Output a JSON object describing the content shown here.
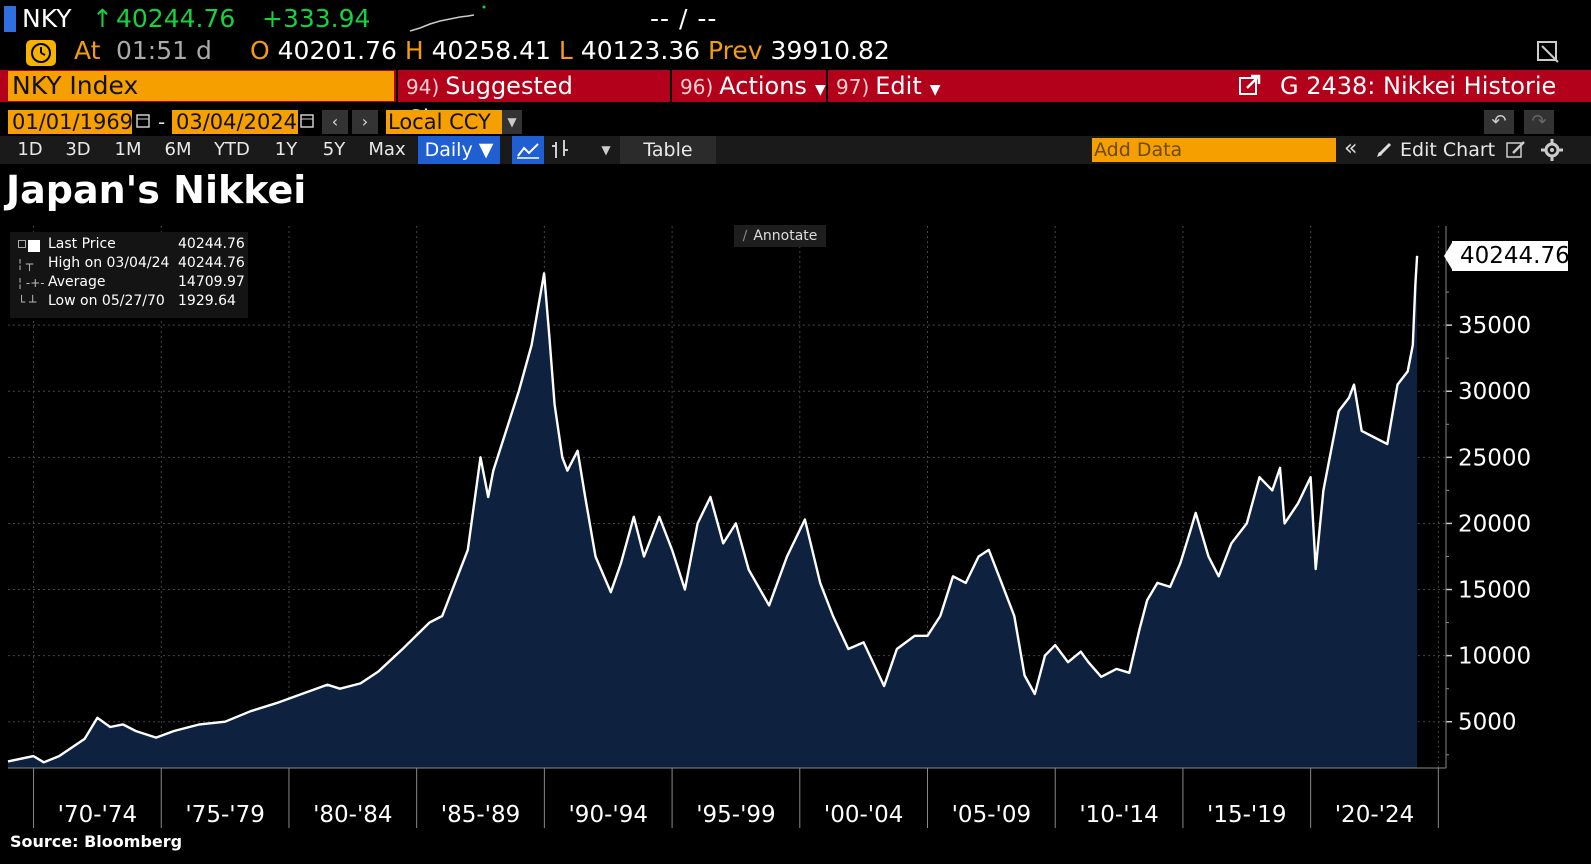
{
  "quote": {
    "ticker": "NKY",
    "arrow": "↑",
    "last": "40244.76",
    "change": "+333.94",
    "bid_ask": "-- / --",
    "at_label": "At",
    "time": "01:51 d",
    "open_label": "O",
    "open": "40201.76",
    "high_label": "H",
    "high": "40258.41",
    "low_label": "L",
    "low": "40123.36",
    "prev_label": "Prev",
    "prev": "39910.82"
  },
  "menu": {
    "security": "NKY Index",
    "suggested": {
      "num": "94)",
      "label": "Suggested Charts"
    },
    "actions": {
      "num": "96)",
      "label": "Actions"
    },
    "edit": {
      "num": "97)",
      "label": "Edit"
    },
    "page_title": "G 2438: Nikkei Historie"
  },
  "controls": {
    "start_date": "01/01/1969",
    "date_sep": "-",
    "end_date": "03/04/2024",
    "currency": "Local CCY",
    "ranges": [
      "1D",
      "3D",
      "1M",
      "6M",
      "YTD",
      "1Y",
      "5Y",
      "Max"
    ],
    "frequency": "Daily ▼",
    "table": "Table",
    "add_data_placeholder": "Add Data",
    "edit_chart": "Edit Chart",
    "annotate": "Annotate"
  },
  "colors": {
    "accent_orange": "#f5a000",
    "menu_red": "#b3001b",
    "up_green": "#17d13d",
    "area_fill": "#0e2240",
    "line": "#ffffff",
    "selected_blue": "#1f5fd1"
  },
  "legend": [
    {
      "label": "Last Price",
      "value": "40244.76",
      "marker": "square"
    },
    {
      "label": "High on 03/04/24",
      "value": "40244.76",
      "marker": "high"
    },
    {
      "label": "Average",
      "value": "14709.97",
      "marker": "avg"
    },
    {
      "label": "Low on 05/27/70",
      "value": "1929.64",
      "marker": "low"
    }
  ],
  "last_price_tag": "40244.76",
  "source": "Source: Bloomberg",
  "chart_data": {
    "type": "area",
    "title": "Japan's Nikkei",
    "xlabel": "",
    "ylabel": "",
    "ylim": [
      1500,
      42500
    ],
    "xlim": [
      1969.0,
      2025.3
    ],
    "yticks": [
      5000,
      10000,
      15000,
      20000,
      25000,
      30000,
      35000
    ],
    "xticks": [
      "'70-'74",
      "'75-'79",
      "'80-'84",
      "'85-'89",
      "'90-'94",
      "'95-'99",
      "'00-'04",
      "'05-'09",
      "'10-'14",
      "'15-'19",
      "'20-'24"
    ],
    "grid": true,
    "legend_position": "top-left",
    "series": [
      {
        "name": "Last Price",
        "x": [
          1969.0,
          1970.0,
          1970.4,
          1971.0,
          1972.0,
          1972.5,
          1973.0,
          1973.5,
          1974.0,
          1974.8,
          1975.5,
          1976.5,
          1977.5,
          1978.5,
          1979.5,
          1980.5,
          1981.5,
          1982.0,
          1982.8,
          1983.5,
          1984.5,
          1985.5,
          1986.0,
          1986.5,
          1987.0,
          1987.5,
          1987.8,
          1988.0,
          1988.5,
          1989.0,
          1989.5,
          1989.99,
          1990.2,
          1990.4,
          1990.7,
          1990.9,
          1991.3,
          1991.6,
          1992.0,
          1992.6,
          1993.0,
          1993.5,
          1993.9,
          1994.5,
          1995.0,
          1995.5,
          1996.0,
          1996.5,
          1997.0,
          1997.5,
          1998.0,
          1998.8,
          1999.5,
          2000.2,
          2000.8,
          2001.3,
          2001.9,
          2002.5,
          2003.3,
          2003.8,
          2004.5,
          2005.0,
          2005.5,
          2006.0,
          2006.5,
          2007.0,
          2007.4,
          2007.9,
          2008.4,
          2008.8,
          2009.2,
          2009.6,
          2010.0,
          2010.5,
          2011.0,
          2011.3,
          2011.8,
          2012.4,
          2012.9,
          2013.3,
          2013.6,
          2014.0,
          2014.5,
          2014.9,
          2015.3,
          2015.5,
          2016.0,
          2016.4,
          2016.9,
          2017.5,
          2018.0,
          2018.5,
          2018.8,
          2018.98,
          2019.5,
          2020.0,
          2020.2,
          2020.5,
          2020.9,
          2021.1,
          2021.5,
          2021.7,
          2022.0,
          2022.5,
          2023.0,
          2023.4,
          2023.8,
          2024.0,
          2024.1,
          2024.17
        ],
        "values": [
          2000,
          2400,
          1929.64,
          2400,
          3700,
          5300,
          4600,
          4800,
          4300,
          3800,
          4300,
          4800,
          5000,
          5800,
          6400,
          7100,
          7800,
          7500,
          7900,
          8800,
          10600,
          12500,
          13000,
          15500,
          18000,
          25000,
          22000,
          24000,
          27000,
          30000,
          33500,
          38915,
          34000,
          29000,
          25000,
          24000,
          25500,
          22000,
          17500,
          14800,
          17000,
          20500,
          17500,
          20500,
          18000,
          15000,
          20000,
          22000,
          18500,
          20000,
          16500,
          13800,
          17500,
          20300,
          15500,
          13000,
          10500,
          11000,
          7700,
          10500,
          11500,
          11500,
          13000,
          16000,
          15500,
          17500,
          18000,
          15500,
          13000,
          8500,
          7100,
          10000,
          10800,
          9500,
          10300,
          9500,
          8400,
          9000,
          8700,
          12000,
          14200,
          15500,
          15200,
          17000,
          19500,
          20800,
          17500,
          16000,
          18500,
          20000,
          23500,
          22500,
          24200,
          20000,
          21500,
          23500,
          16550,
          22500,
          26500,
          28500,
          29500,
          30500,
          27000,
          26500,
          26000,
          30500,
          31500,
          33500,
          38000,
          40244.76
        ]
      }
    ],
    "stats": {
      "last": 40244.76,
      "high": 40244.76,
      "average": 14709.97,
      "low": 1929.64
    }
  }
}
